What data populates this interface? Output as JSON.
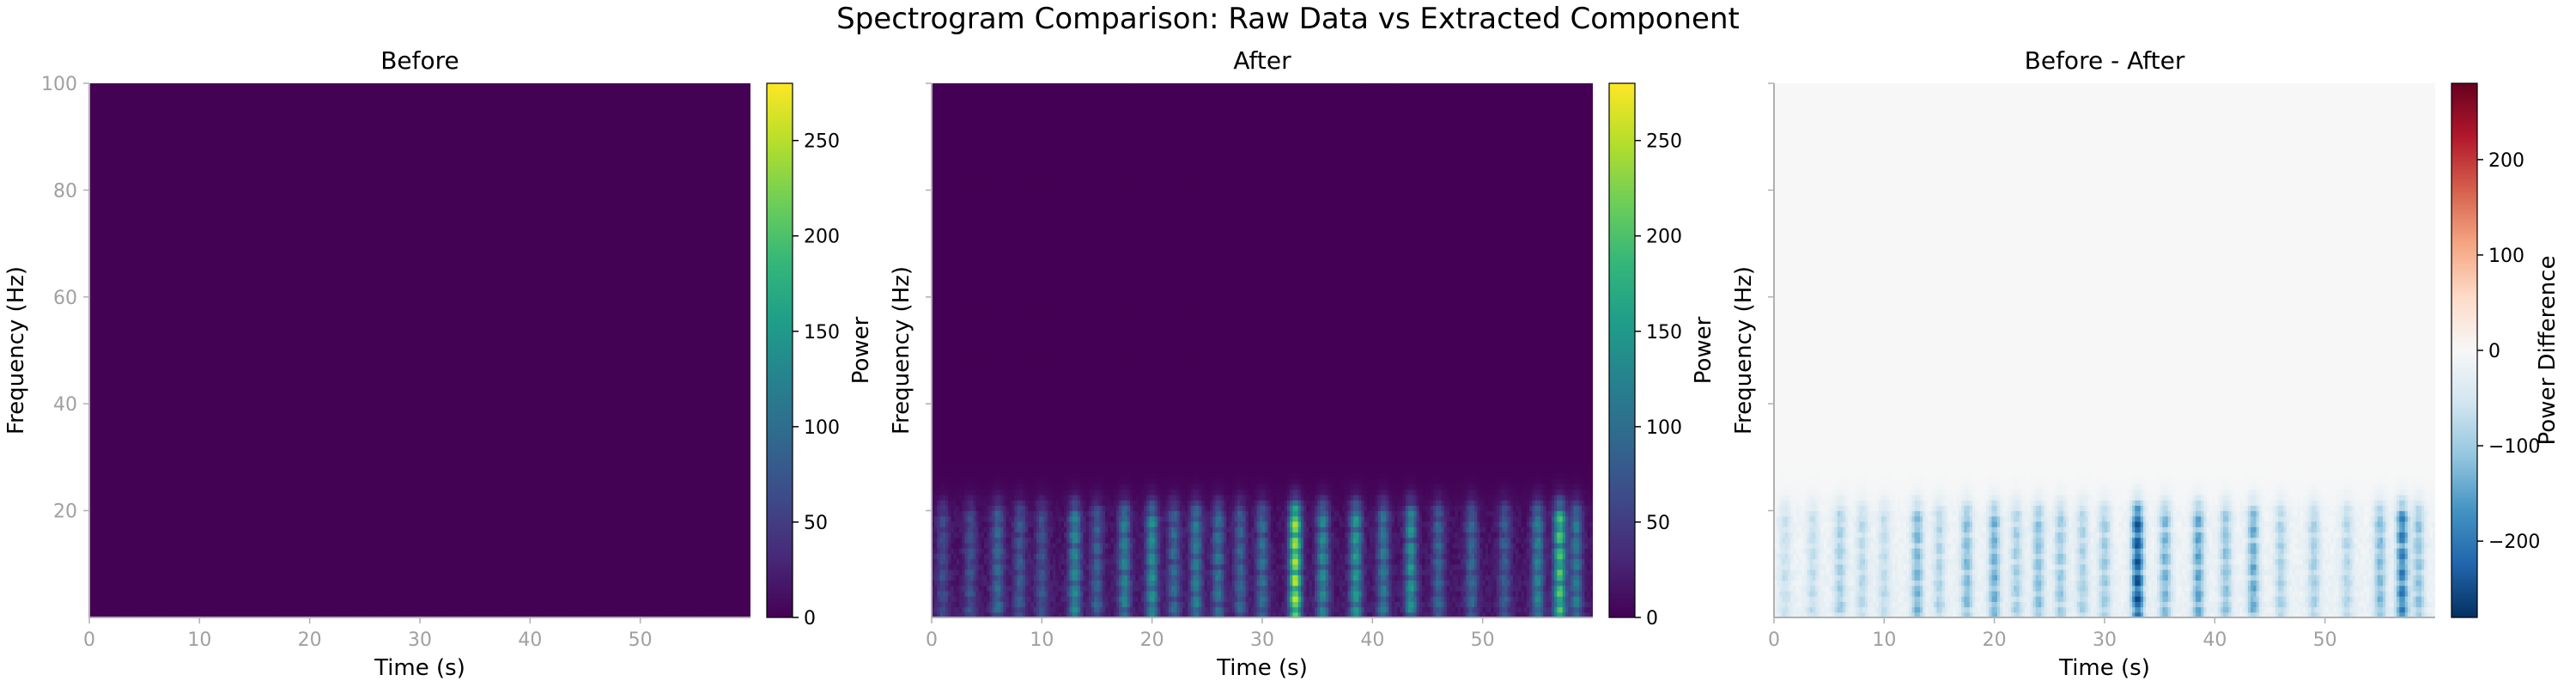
{
  "figure": {
    "suptitle": "Spectrogram Comparison: Raw Data vs Extracted Component"
  },
  "colors": {
    "viridis": [
      "#440154",
      "#482878",
      "#3e4a89",
      "#31688e",
      "#26828e",
      "#1f9e89",
      "#35b779",
      "#6ece58",
      "#b5de2b",
      "#fde725"
    ],
    "rdbu_r": [
      "#053061",
      "#2166ac",
      "#4393c3",
      "#92c5de",
      "#d1e5f0",
      "#f7f7f7",
      "#fddbc7",
      "#f4a582",
      "#d6604d",
      "#b2182b",
      "#67001f"
    ],
    "axis_gray": "#b0b0b0",
    "tick_label_gray": "#a0a0a0"
  },
  "chart_data": [
    {
      "type": "heatmap",
      "title": "Before",
      "xlabel": "Time (s)",
      "ylabel": "Frequency (Hz)",
      "xlim": [
        0,
        60
      ],
      "ylim": [
        0,
        100
      ],
      "xticks": [
        "0",
        "10",
        "20",
        "30",
        "40",
        "50"
      ],
      "yticks": [
        "20",
        "40",
        "60",
        "80",
        "100"
      ],
      "colormap": "viridis",
      "colorbar": {
        "label": "Power",
        "range": [
          0,
          280
        ],
        "ticks": [
          "0",
          "50",
          "100",
          "150",
          "200",
          "250"
        ]
      },
      "description_values": "uniform near-zero power across all times and frequencies",
      "events": []
    },
    {
      "type": "heatmap",
      "title": "After",
      "xlabel": "Time (s)",
      "ylabel": "Frequency (Hz)",
      "xlim": [
        0,
        60
      ],
      "ylim": [
        0,
        100
      ],
      "xticks": [
        "0",
        "10",
        "20",
        "30",
        "40",
        "50"
      ],
      "yticks": [],
      "colormap": "viridis",
      "colorbar": {
        "label": "Power",
        "range": [
          0,
          280
        ],
        "ticks": [
          "0",
          "50",
          "100",
          "150",
          "200",
          "250"
        ]
      },
      "band_hz": [
        2,
        18
      ],
      "events": [
        {
          "t": 1,
          "p": 55
        },
        {
          "t": 3.5,
          "p": 60
        },
        {
          "t": 6,
          "p": 90
        },
        {
          "t": 8,
          "p": 70
        },
        {
          "t": 10,
          "p": 65
        },
        {
          "t": 13,
          "p": 130
        },
        {
          "t": 15,
          "p": 80
        },
        {
          "t": 17.5,
          "p": 120
        },
        {
          "t": 20,
          "p": 135
        },
        {
          "t": 22,
          "p": 90
        },
        {
          "t": 24,
          "p": 115
        },
        {
          "t": 26,
          "p": 100
        },
        {
          "t": 28,
          "p": 85
        },
        {
          "t": 30,
          "p": 95
        },
        {
          "t": 33,
          "p": 250
        },
        {
          "t": 35.5,
          "p": 130
        },
        {
          "t": 38.5,
          "p": 150
        },
        {
          "t": 41,
          "p": 110
        },
        {
          "t": 43.5,
          "p": 140
        },
        {
          "t": 46,
          "p": 85
        },
        {
          "t": 49,
          "p": 90
        },
        {
          "t": 52,
          "p": 75
        },
        {
          "t": 55,
          "p": 120
        },
        {
          "t": 57,
          "p": 200
        },
        {
          "t": 58.5,
          "p": 110
        }
      ]
    },
    {
      "type": "heatmap",
      "title": "Before - After",
      "xlabel": "Time (s)",
      "ylabel": "Frequency (Hz)",
      "xlim": [
        0,
        60
      ],
      "ylim": [
        0,
        100
      ],
      "xticks": [
        "0",
        "10",
        "20",
        "30",
        "40",
        "50"
      ],
      "yticks": [],
      "colormap": "RdBu_r",
      "colorbar": {
        "label": "Power Difference",
        "range": [
          -280,
          280
        ],
        "ticks": [
          "−200",
          "−100",
          "0",
          "100",
          "200"
        ]
      },
      "band_hz": [
        2,
        18
      ],
      "events_from": "After (negated)"
    }
  ]
}
